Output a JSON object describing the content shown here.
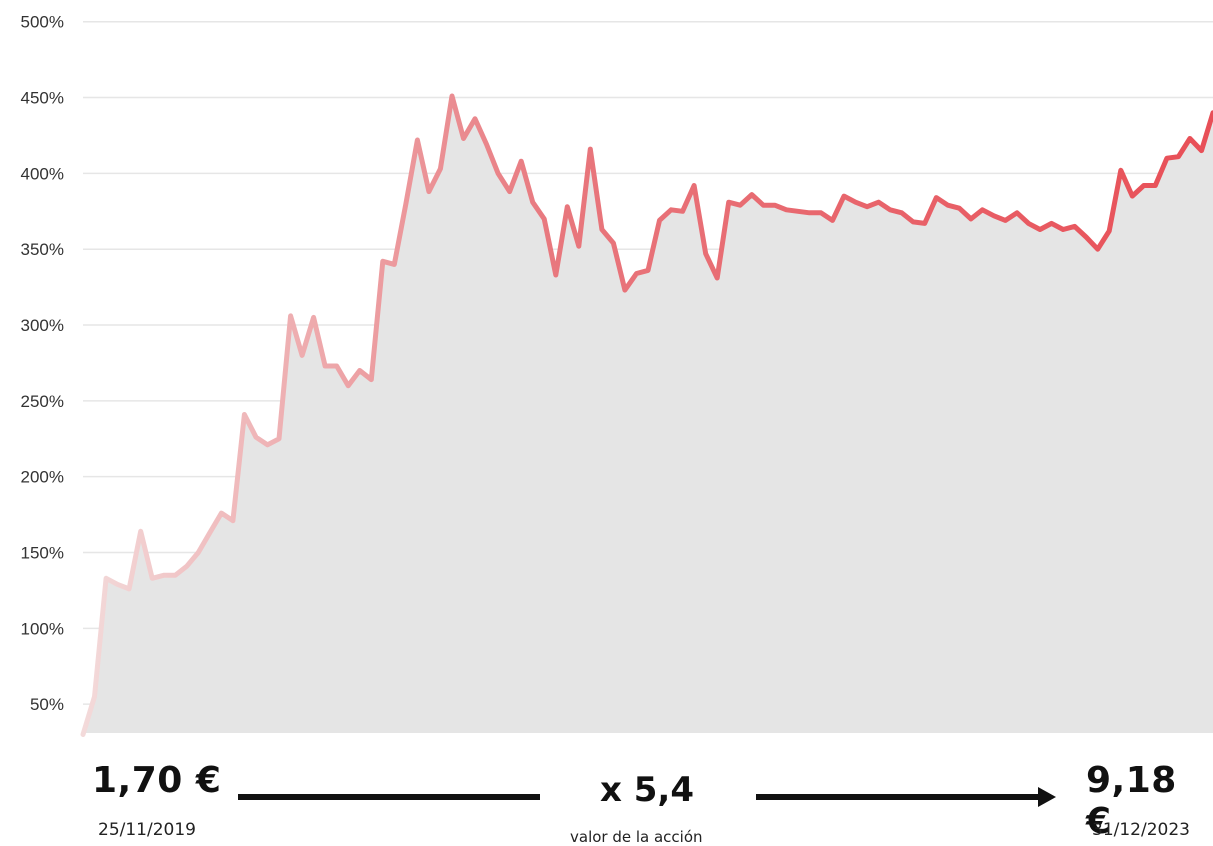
{
  "chart_data": {
    "type": "area",
    "ylim": [
      30,
      500
    ],
    "y_ticks": [
      "50%",
      "100%",
      "150%",
      "200%",
      "250%",
      "300%",
      "350%",
      "400%",
      "450%",
      "500%"
    ],
    "y_tick_values": [
      50,
      100,
      150,
      200,
      250,
      300,
      350,
      400,
      450,
      500
    ],
    "grid": true,
    "x_start": "25/11/2019",
    "x_end": "31/12/2023",
    "series": [
      {
        "values": [
          30,
          55,
          133,
          129,
          126,
          164,
          133,
          135,
          135,
          141,
          150,
          163,
          176,
          171,
          241,
          226,
          221,
          225,
          306,
          280,
          305,
          273,
          273,
          260,
          270,
          264,
          342,
          340,
          380,
          422,
          388,
          403,
          451,
          423,
          436,
          419,
          400,
          388,
          408,
          381,
          370,
          333,
          378,
          352,
          416,
          363,
          354,
          323,
          334,
          336,
          369,
          376,
          375,
          392,
          347,
          331,
          381,
          379,
          386,
          379,
          379,
          376,
          375,
          374,
          374,
          369,
          385,
          381,
          378,
          381,
          376,
          374,
          368,
          367,
          384,
          379,
          377,
          370,
          376,
          372,
          369,
          374,
          367,
          363,
          367,
          363,
          365,
          358,
          350,
          362,
          402,
          385,
          392,
          392,
          410,
          411,
          423,
          415,
          440
        ]
      }
    ],
    "colors": {
      "area_fill": "#e5e5e5",
      "grid": "#e6e6e6",
      "line_start": "#f3dada",
      "line_end": "#e84f57"
    }
  },
  "summary": {
    "start_price": "1,70 €",
    "start_date": "25/11/2019",
    "multiplier": "x 5,4",
    "caption": "valor de la acción",
    "end_price": "9,18 €",
    "end_date": "31/12/2023"
  }
}
